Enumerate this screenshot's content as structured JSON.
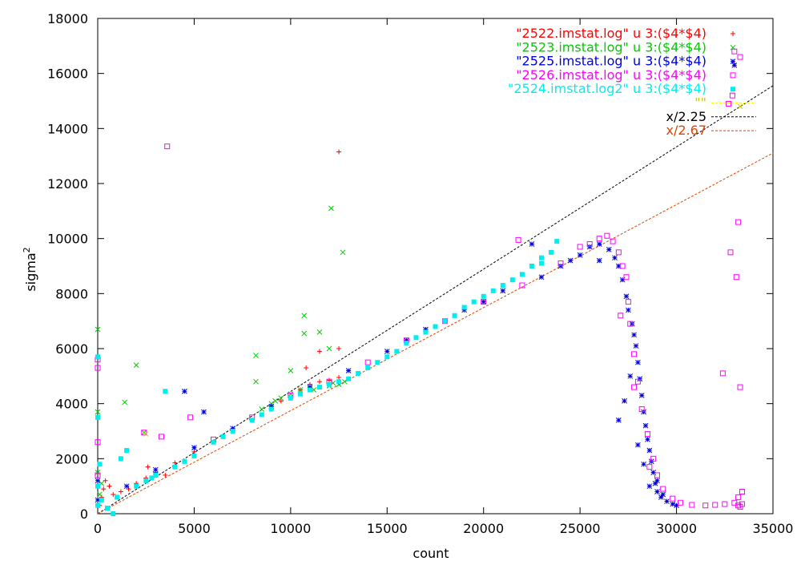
{
  "chart_data": {
    "type": "scatter",
    "xlabel": "count",
    "ylabel": "sigma",
    "ylabel_superscript": "2",
    "xlim": [
      0,
      35000
    ],
    "ylim": [
      0,
      18000
    ],
    "x_ticks": [
      0,
      5000,
      10000,
      15000,
      20000,
      25000,
      30000,
      35000
    ],
    "y_ticks": [
      0,
      2000,
      4000,
      6000,
      8000,
      10000,
      12000,
      14000,
      16000,
      18000
    ],
    "x_tick_labels": [
      "0",
      "5000",
      "10000",
      "15000",
      "20000",
      "25000",
      "30000",
      "35000"
    ],
    "y_tick_labels": [
      "0",
      "2000",
      "4000",
      "6000",
      "8000",
      "10000",
      "12000",
      "14000",
      "16000",
      "18000"
    ],
    "grid": false,
    "legend_position": "top-right",
    "series": [
      {
        "name": "\"2522.imstat.log\" u 3:($4*$4)",
        "color": "#ff0000",
        "marker": "plus",
        "points": [
          [
            100,
            300
          ],
          [
            200,
            600
          ],
          [
            300,
            900
          ],
          [
            400,
            1200
          ],
          [
            600,
            1000
          ],
          [
            800,
            700
          ],
          [
            1200,
            800
          ],
          [
            1600,
            900
          ],
          [
            2000,
            1100
          ],
          [
            2500,
            1300
          ],
          [
            3000,
            1500
          ],
          [
            4000,
            1850
          ],
          [
            5000,
            2250
          ],
          [
            6000,
            2600
          ],
          [
            7000,
            3000
          ],
          [
            8000,
            3400
          ],
          [
            9000,
            3800
          ],
          [
            10000,
            4200
          ],
          [
            10500,
            4500
          ],
          [
            11000,
            4700
          ],
          [
            11500,
            4800
          ],
          [
            12000,
            4850
          ],
          [
            12500,
            4950
          ],
          [
            10800,
            5300
          ],
          [
            11500,
            5900
          ],
          [
            12500,
            6000
          ],
          [
            12500,
            13150
          ],
          [
            2600,
            1700
          ],
          [
            3500,
            1400
          ],
          [
            9500,
            4100
          ]
        ]
      },
      {
        "name": "\"2523.imstat.log\" u 3:($4*$4)",
        "color": "#00cc00",
        "marker": "cross",
        "points": [
          [
            0,
            6700
          ],
          [
            0,
            3700
          ],
          [
            0,
            1500
          ],
          [
            100,
            700
          ],
          [
            200,
            1100
          ],
          [
            1400,
            4050
          ],
          [
            2000,
            5400
          ],
          [
            2400,
            2950
          ],
          [
            8200,
            5750
          ],
          [
            8200,
            4800
          ],
          [
            10000,
            5200
          ],
          [
            10700,
            7200
          ],
          [
            10700,
            6550
          ],
          [
            11500,
            6600
          ],
          [
            12000,
            6000
          ],
          [
            12100,
            11100
          ],
          [
            12700,
            9500
          ],
          [
            9000,
            4000
          ],
          [
            9500,
            4200
          ],
          [
            10000,
            4350
          ],
          [
            10500,
            4500
          ],
          [
            11000,
            4550
          ],
          [
            11500,
            4600
          ],
          [
            12000,
            4650
          ],
          [
            12500,
            4700
          ],
          [
            12800,
            4800
          ],
          [
            8500,
            3800
          ],
          [
            9200,
            4100
          ],
          [
            12200,
            4750
          ],
          [
            11200,
            4500
          ]
        ]
      },
      {
        "name": "\"2525.imstat.log\" u 3:($4*$4)",
        "color": "#0000dd",
        "marker": "star",
        "points": [
          [
            0,
            500
          ],
          [
            0,
            1200
          ],
          [
            500,
            200
          ],
          [
            1500,
            1000
          ],
          [
            3000,
            1600
          ],
          [
            4500,
            4450
          ],
          [
            5500,
            3700
          ],
          [
            5000,
            2400
          ],
          [
            7000,
            3100
          ],
          [
            9000,
            3900
          ],
          [
            11000,
            4600
          ],
          [
            13000,
            5200
          ],
          [
            15000,
            5900
          ],
          [
            17000,
            6700
          ],
          [
            19000,
            7400
          ],
          [
            21000,
            8100
          ],
          [
            22500,
            9800
          ],
          [
            23000,
            8600
          ],
          [
            24000,
            9000
          ],
          [
            25000,
            9400
          ],
          [
            25500,
            9700
          ],
          [
            26000,
            9800
          ],
          [
            26500,
            9600
          ],
          [
            26800,
            9300
          ],
          [
            27000,
            9000
          ],
          [
            27200,
            8500
          ],
          [
            27400,
            7900
          ],
          [
            27500,
            7400
          ],
          [
            27700,
            6900
          ],
          [
            27800,
            6500
          ],
          [
            27900,
            6100
          ],
          [
            28000,
            5500
          ],
          [
            28100,
            4900
          ],
          [
            28200,
            4300
          ],
          [
            28300,
            3700
          ],
          [
            28400,
            3200
          ],
          [
            28500,
            2700
          ],
          [
            28600,
            2300
          ],
          [
            28700,
            1900
          ],
          [
            28800,
            1500
          ],
          [
            28900,
            1100
          ],
          [
            29000,
            800
          ],
          [
            29200,
            600
          ],
          [
            29500,
            450
          ],
          [
            29800,
            350
          ],
          [
            30000,
            300
          ],
          [
            27000,
            3400
          ],
          [
            27300,
            4100
          ],
          [
            27600,
            5000
          ],
          [
            28000,
            2500
          ],
          [
            28300,
            1800
          ],
          [
            28600,
            1000
          ],
          [
            29000,
            1200
          ],
          [
            29300,
            700
          ],
          [
            33000,
            16300
          ],
          [
            26000,
            9200
          ],
          [
            24500,
            9200
          ],
          [
            20000,
            7700
          ],
          [
            18000,
            7000
          ],
          [
            16000,
            6300
          ]
        ]
      },
      {
        "name": "\"2526.imstat.log\" u 3:($4*$4)",
        "color": "#ff00ff",
        "marker": "square",
        "points": [
          [
            0,
            5600
          ],
          [
            0,
            5300
          ],
          [
            0,
            1400
          ],
          [
            0,
            2600
          ],
          [
            3600,
            13350
          ],
          [
            2400,
            2950
          ],
          [
            3300,
            2800
          ],
          [
            4800,
            3500
          ],
          [
            6000,
            2700
          ],
          [
            8000,
            3500
          ],
          [
            10000,
            4300
          ],
          [
            12000,
            4800
          ],
          [
            14000,
            5500
          ],
          [
            16000,
            6300
          ],
          [
            18000,
            7000
          ],
          [
            20000,
            7700
          ],
          [
            21800,
            9950
          ],
          [
            22000,
            8300
          ],
          [
            24000,
            9100
          ],
          [
            25000,
            9700
          ],
          [
            25500,
            9800
          ],
          [
            26000,
            10000
          ],
          [
            26400,
            10100
          ],
          [
            26700,
            9900
          ],
          [
            27000,
            9500
          ],
          [
            27200,
            9000
          ],
          [
            27400,
            8600
          ],
          [
            27500,
            7700
          ],
          [
            27600,
            6900
          ],
          [
            27800,
            5800
          ],
          [
            28000,
            4800
          ],
          [
            28200,
            3800
          ],
          [
            28500,
            2900
          ],
          [
            28800,
            2000
          ],
          [
            29000,
            1400
          ],
          [
            29300,
            900
          ],
          [
            29800,
            550
          ],
          [
            30200,
            400
          ],
          [
            30800,
            320
          ],
          [
            31500,
            300
          ],
          [
            32000,
            320
          ],
          [
            32500,
            350
          ],
          [
            33000,
            400
          ],
          [
            33200,
            600
          ],
          [
            33400,
            800
          ],
          [
            33200,
            300
          ],
          [
            33300,
            250
          ],
          [
            33400,
            350
          ],
          [
            32400,
            5100
          ],
          [
            32800,
            9500
          ],
          [
            33000,
            16800
          ],
          [
            33300,
            16600
          ],
          [
            33200,
            10600
          ],
          [
            33100,
            8600
          ],
          [
            33300,
            4600
          ],
          [
            32700,
            14900
          ],
          [
            32900,
            15200
          ],
          [
            27100,
            7200
          ],
          [
            27800,
            4600
          ],
          [
            28600,
            1700
          ]
        ]
      },
      {
        "name": "\"2524.imstat.log2\" u 3:($4*$4)",
        "color": "#00eeee",
        "marker": "filled-square",
        "points": [
          [
            0,
            5700
          ],
          [
            0,
            3500
          ],
          [
            0,
            1000
          ],
          [
            0,
            300
          ],
          [
            100,
            1800
          ],
          [
            200,
            500
          ],
          [
            500,
            200
          ],
          [
            800,
            0
          ],
          [
            1000,
            600
          ],
          [
            1500,
            2300
          ],
          [
            2000,
            1000
          ],
          [
            3000,
            1400
          ],
          [
            3500,
            4450
          ],
          [
            4000,
            1700
          ],
          [
            5000,
            2100
          ],
          [
            6000,
            2600
          ],
          [
            7000,
            3000
          ],
          [
            8000,
            3400
          ],
          [
            9000,
            3800
          ],
          [
            10000,
            4200
          ],
          [
            11000,
            4500
          ],
          [
            12000,
            4700
          ],
          [
            13000,
            4900
          ],
          [
            14000,
            5300
          ],
          [
            15000,
            5700
          ],
          [
            16000,
            6200
          ],
          [
            17000,
            6600
          ],
          [
            18000,
            7000
          ],
          [
            19000,
            7500
          ],
          [
            20000,
            7900
          ],
          [
            21000,
            8300
          ],
          [
            22000,
            8700
          ],
          [
            22500,
            9000
          ],
          [
            23000,
            9100
          ],
          [
            23500,
            9500
          ],
          [
            23800,
            9900
          ],
          [
            2500,
            1200
          ],
          [
            4500,
            1900
          ],
          [
            6500,
            2800
          ],
          [
            8500,
            3600
          ],
          [
            10500,
            4350
          ],
          [
            11500,
            4600
          ],
          [
            12500,
            4800
          ],
          [
            13500,
            5100
          ],
          [
            14500,
            5500
          ],
          [
            15500,
            5900
          ],
          [
            16500,
            6400
          ],
          [
            17500,
            6800
          ],
          [
            18500,
            7200
          ],
          [
            19500,
            7700
          ],
          [
            20500,
            8100
          ],
          [
            21500,
            8500
          ],
          [
            23000,
            9300
          ],
          [
            1200,
            2000
          ],
          [
            2800,
            1300
          ]
        ]
      }
    ],
    "lines": [
      {
        "name": "\"\"",
        "color": "#ffff00",
        "style": "dotted",
        "slope": null
      },
      {
        "name": "x/2.25",
        "color": "#000000",
        "style": "dashed",
        "slope": 0.4444
      },
      {
        "name": "x/2.67",
        "color": "#dd4400",
        "style": "dashed",
        "slope": 0.3745
      }
    ],
    "extra_points": [
      {
        "series": "yellow",
        "color": "#cccc00",
        "marker": "cross",
        "x": 2500,
        "y": 2900
      },
      {
        "series": "yellow",
        "color": "#cccc00",
        "marker": "cross",
        "x": 33300,
        "y": 14800
      }
    ]
  }
}
